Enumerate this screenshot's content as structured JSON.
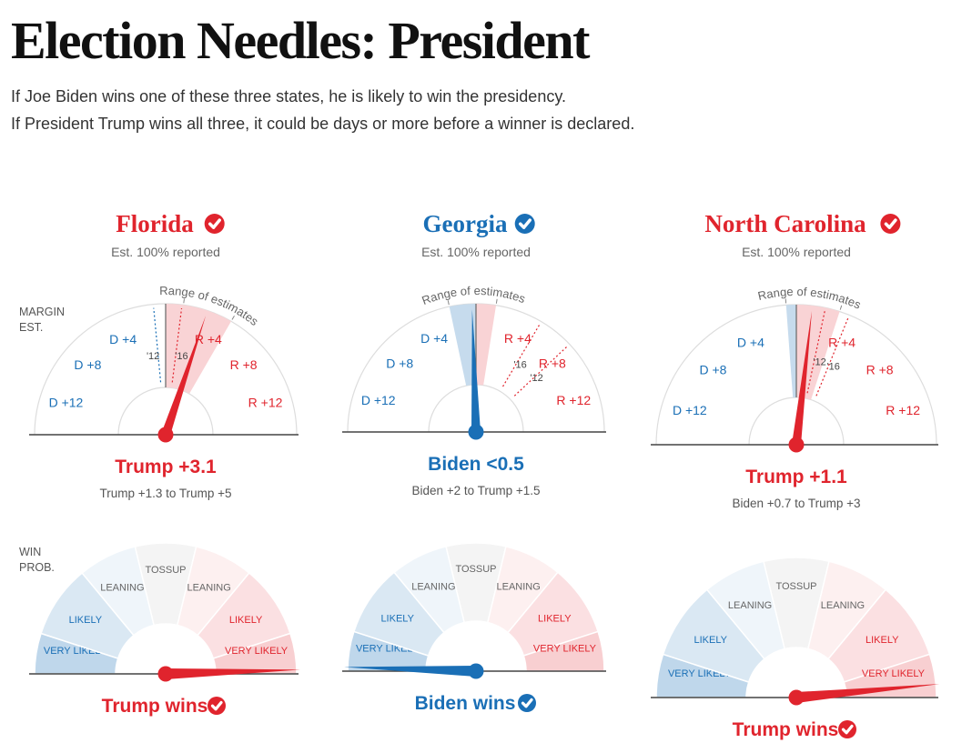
{
  "header": {
    "title": "Election Needles: President",
    "subtitle_line1": "If Joe Biden wins one of these three states, he is likely to win the presidency.",
    "subtitle_line2": "If President Trump wins all three, it could be days or more before a winner is declared."
  },
  "colors": {
    "dem": "#1a6fb6",
    "rep": "#e0242d",
    "gray": "#555555",
    "light_gray": "#888888"
  },
  "axis_labels": {
    "margin": [
      "MARGIN",
      "EST."
    ],
    "win": [
      "WIN",
      "PROB."
    ]
  },
  "chart_data": [
    {
      "type": "gauge",
      "state": "Florida",
      "winner_party": "rep",
      "reported": "Est. 100% reported",
      "range_label": "Range of estimates",
      "margin_ticks": [
        "D +4",
        "D +8",
        "D +12",
        "R +4",
        "R +8",
        "R +12"
      ],
      "needle_margin": 3.1,
      "range": [
        1.3,
        5
      ],
      "history": [
        {
          "label": "'12",
          "margin": -0.9
        },
        {
          "label": "'16",
          "margin": 1.2
        }
      ],
      "result_label": "Trump +3.1",
      "range_text": "Trump +1.3 to Trump +5",
      "win_prob_bands": [
        "VERY LIKELY",
        "LIKELY",
        "LEANING",
        "TOSSUP",
        "LEANING",
        "LIKELY",
        "VERY LIKELY"
      ],
      "win_prob_needle": 0.99,
      "winner_label": "Trump wins"
    },
    {
      "type": "gauge",
      "state": "Georgia",
      "winner_party": "dem",
      "reported": "Est. 100% reported",
      "range_label": "Range of estimates",
      "margin_ticks": [
        "D +4",
        "D +8",
        "D +12",
        "R +4",
        "R +8",
        "R +12"
      ],
      "needle_margin": -0.3,
      "range": [
        -2,
        1.5
      ],
      "history": [
        {
          "label": "'16",
          "margin": 5.1
        },
        {
          "label": "'12",
          "margin": 7.8
        }
      ],
      "result_label": "Biden <0.5",
      "range_text": "Biden +2 to Trump +1.5",
      "win_prob_bands": [
        "VERY LIKELY",
        "LIKELY",
        "LEANING",
        "TOSSUP",
        "LEANING",
        "LIKELY",
        "VERY LIKELY"
      ],
      "win_prob_needle": 0.01,
      "winner_label": "Biden wins"
    },
    {
      "type": "gauge",
      "state": "North Carolina",
      "winner_party": "rep",
      "reported": "Est. 100% reported",
      "range_label": "Range of estimates",
      "margin_ticks": [
        "D +4",
        "D +8",
        "D +12",
        "R +4",
        "R +8",
        "R +12"
      ],
      "needle_margin": 1.1,
      "range": [
        -0.7,
        3
      ],
      "history": [
        {
          "label": "'12",
          "margin": 2
        },
        {
          "label": "'16",
          "margin": 3.7
        }
      ],
      "result_label": "Trump +1.1",
      "range_text": "Biden +0.7 to Trump +3",
      "win_prob_bands": [
        "VERY LIKELY",
        "LIKELY",
        "LEANING",
        "TOSSUP",
        "LEANING",
        "LIKELY",
        "VERY LIKELY"
      ],
      "win_prob_needle": 0.97,
      "winner_label": "Trump wins"
    }
  ]
}
